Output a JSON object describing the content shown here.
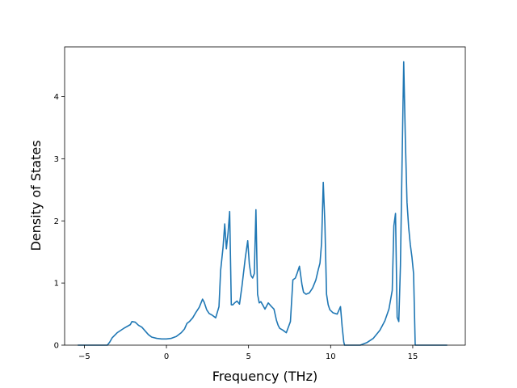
{
  "chart_data": {
    "type": "line",
    "title": "",
    "xlabel": "Frequency (THz)",
    "ylabel": "Density of States",
    "xlim": [
      -6.2,
      18.2
    ],
    "ylim": [
      0,
      4.8
    ],
    "xticks": [
      -5,
      0,
      5,
      10,
      15
    ],
    "xtick_labels": [
      "−5",
      "0",
      "5",
      "10",
      "15"
    ],
    "yticks": [
      0,
      1,
      2,
      3,
      4
    ],
    "ytick_labels": [
      "0",
      "1",
      "2",
      "3",
      "4"
    ],
    "grid": false,
    "line_color": "#1f77b4",
    "series": [
      {
        "x": [
          -5.4,
          -3.6,
          -3.45,
          -3.3,
          -3.0,
          -2.6,
          -2.2,
          -2.1,
          -1.9,
          -1.7,
          -1.5,
          -1.3,
          -1.1,
          -0.9,
          -0.6,
          -0.3,
          0.0,
          0.3,
          0.6,
          0.9,
          1.1,
          1.25,
          1.4,
          1.6,
          1.8,
          2.0,
          2.2,
          2.3,
          2.45,
          2.6,
          2.8,
          3.0,
          3.2,
          3.3,
          3.45,
          3.55,
          3.65,
          3.75,
          3.85,
          3.95,
          4.05,
          4.15,
          4.3,
          4.45,
          4.6,
          4.8,
          4.95,
          5.05,
          5.15,
          5.25,
          5.35,
          5.45,
          5.55,
          5.65,
          5.75,
          5.9,
          6.0,
          6.2,
          6.4,
          6.55,
          6.7,
          6.8,
          6.9,
          7.1,
          7.3,
          7.55,
          7.7,
          7.85,
          7.95,
          8.1,
          8.25,
          8.35,
          8.5,
          8.7,
          8.9,
          9.1,
          9.25,
          9.35,
          9.45,
          9.55,
          9.65,
          9.75,
          9.85,
          9.95,
          10.15,
          10.4,
          10.6,
          10.7,
          10.8,
          10.85,
          11.0,
          11.8,
          12.2,
          12.6,
          13.0,
          13.3,
          13.55,
          13.75,
          13.85,
          13.95,
          14.05,
          14.15,
          14.25,
          14.35,
          14.45,
          14.55,
          14.65,
          14.75,
          14.85,
          14.95,
          15.05,
          15.15,
          15.3,
          16.0,
          17.1
        ],
        "y": [
          0.0,
          0.0,
          0.05,
          0.12,
          0.2,
          0.27,
          0.33,
          0.38,
          0.37,
          0.32,
          0.29,
          0.23,
          0.17,
          0.13,
          0.11,
          0.1,
          0.1,
          0.11,
          0.14,
          0.2,
          0.26,
          0.35,
          0.38,
          0.44,
          0.53,
          0.61,
          0.74,
          0.69,
          0.57,
          0.51,
          0.48,
          0.44,
          0.62,
          1.2,
          1.58,
          1.95,
          1.55,
          1.8,
          2.15,
          0.65,
          0.65,
          0.68,
          0.71,
          0.66,
          0.95,
          1.4,
          1.68,
          1.3,
          1.12,
          1.08,
          1.15,
          2.18,
          0.82,
          0.68,
          0.7,
          0.63,
          0.58,
          0.68,
          0.62,
          0.58,
          0.4,
          0.32,
          0.27,
          0.24,
          0.2,
          0.38,
          1.05,
          1.08,
          1.15,
          1.27,
          0.98,
          0.85,
          0.82,
          0.84,
          0.92,
          1.05,
          1.22,
          1.32,
          1.65,
          2.62,
          1.95,
          0.82,
          0.65,
          0.57,
          0.52,
          0.5,
          0.62,
          0.3,
          0.05,
          0.0,
          0.0,
          0.0,
          0.04,
          0.11,
          0.24,
          0.39,
          0.58,
          0.88,
          1.92,
          2.12,
          0.45,
          0.38,
          1.28,
          2.95,
          4.56,
          3.3,
          2.3,
          1.9,
          1.62,
          1.42,
          1.15,
          0.0,
          0.0,
          0.0,
          0.0
        ]
      }
    ]
  }
}
